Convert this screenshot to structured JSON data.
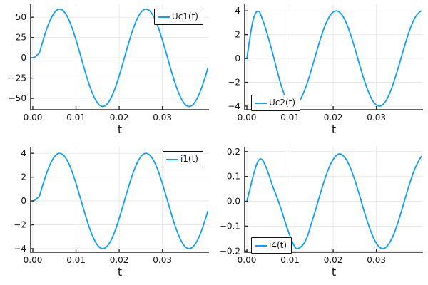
{
  "figure": {
    "background": "#ffffff",
    "colors": {
      "series_line": "#0f9ef8",
      "grid": "#e9e9e9",
      "axis": "#2b2b2b",
      "tick_text": "#141414",
      "legend_border": "#111111",
      "legend_bg": "#ffffff"
    }
  },
  "chart_data": [
    {
      "type": "line",
      "title": "",
      "xlabel": "t",
      "ylabel": "",
      "grid": true,
      "legend_position": "topright",
      "xlim": [
        -0.0005,
        0.0408
      ],
      "ylim": [
        -64,
        66
      ],
      "xticks": {
        "labels": [
          "0.00",
          "0.01",
          "0.02",
          "0.03"
        ],
        "values": [
          0,
          0.01,
          0.02,
          0.03
        ]
      },
      "yticks": {
        "labels": [
          "50",
          "25",
          "0",
          "−25",
          "−50"
        ],
        "values": [
          50,
          25,
          0,
          -25,
          -50
        ]
      },
      "series": [
        {
          "name": "Uc1(t)",
          "x": [
            0,
            0.0005,
            0.001,
            0.0015,
            0.002,
            0.003,
            0.004,
            0.005,
            0.006,
            0.007,
            0.008,
            0.009,
            0.01,
            0.011,
            0.012,
            0.013,
            0.014,
            0.015,
            0.016,
            0.017,
            0.018,
            0.019,
            0.02,
            0.021,
            0.022,
            0.023,
            0.024,
            0.025,
            0.026,
            0.027,
            0.028,
            0.029,
            0.03,
            0.031,
            0.032,
            0.033,
            0.034,
            0.035,
            0.036,
            0.037,
            0.038,
            0.039,
            0.04,
            0.0405
          ],
          "y": [
            0,
            1,
            3.5,
            6,
            14.9,
            32.1,
            46.2,
            55.8,
            59.9,
            58.1,
            50.7,
            38.2,
            22.1,
            3.8,
            -14.9,
            -32.1,
            -46.2,
            -55.8,
            -59.9,
            -58.1,
            -50.7,
            -38.2,
            -22.1,
            -3.8,
            14.9,
            32.1,
            46.2,
            55.8,
            59.9,
            58.1,
            50.7,
            38.2,
            22.1,
            3.8,
            -14.9,
            -32.1,
            -46.2,
            -55.8,
            -59.9,
            -58.1,
            -50.7,
            -38.2,
            -22.1,
            -13.1
          ]
        }
      ]
    },
    {
      "type": "line",
      "title": "",
      "xlabel": "t",
      "ylabel": "",
      "grid": true,
      "legend_position": "bottomleft",
      "xlim": [
        -0.0005,
        0.0408
      ],
      "ylim": [
        -4.3,
        4.55
      ],
      "xticks": {
        "labels": [
          "0.00",
          "0.01",
          "0.02",
          "0.03"
        ],
        "values": [
          0,
          0.01,
          0.02,
          0.03
        ]
      },
      "yticks": {
        "labels": [
          "4",
          "2",
          "0",
          "−2",
          "−4"
        ],
        "values": [
          4,
          2,
          0,
          -2,
          -4
        ]
      },
      "series": [
        {
          "name": "Uc2(t)",
          "x": [
            0,
            0.0005,
            0.001,
            0.0015,
            0.002,
            0.0025,
            0.003,
            0.004,
            0.005,
            0.006,
            0.007,
            0.008,
            0.009,
            0.01,
            0.0105,
            0.011,
            0.012,
            0.013,
            0.014,
            0.015,
            0.016,
            0.017,
            0.018,
            0.019,
            0.02,
            0.021,
            0.022,
            0.023,
            0.024,
            0.025,
            0.026,
            0.027,
            0.028,
            0.029,
            0.03,
            0.031,
            0.032,
            0.033,
            0.034,
            0.035,
            0.036,
            0.037,
            0.038,
            0.039,
            0.04,
            0.0405
          ],
          "y": [
            0,
            1.2,
            2.4,
            3.3,
            3.8,
            3.95,
            3.85,
            2.9,
            1.7,
            0.4,
            -1,
            -2.3,
            -3.3,
            -3.9,
            -3.95,
            -4,
            -3.7,
            -3,
            -2.05,
            -0.87,
            0.38,
            1.59,
            2.65,
            3.45,
            3.9,
            3.98,
            3.67,
            3.01,
            2.03,
            0.87,
            -0.38,
            -1.6,
            -2.65,
            -3.46,
            -3.9,
            -3.98,
            -3.67,
            -3,
            -2.02,
            -0.86,
            0.39,
            1.6,
            2.66,
            3.46,
            3.9,
            3.99
          ]
        }
      ]
    },
    {
      "type": "line",
      "title": "",
      "xlabel": "t",
      "ylabel": "",
      "grid": true,
      "legend_position": "topright",
      "xlim": [
        -0.0005,
        0.0408
      ],
      "ylim": [
        -4.3,
        4.55
      ],
      "xticks": {
        "labels": [
          "0.00",
          "0.01",
          "0.02",
          "0.03"
        ],
        "values": [
          0,
          0.01,
          0.02,
          0.03
        ]
      },
      "yticks": {
        "labels": [
          "4",
          "2",
          "0",
          "−2",
          "−4"
        ],
        "values": [
          4,
          2,
          0,
          -2,
          -4
        ]
      },
      "series": [
        {
          "name": "i1(t)",
          "x": [
            0,
            0.0005,
            0.001,
            0.0015,
            0.002,
            0.003,
            0.004,
            0.005,
            0.006,
            0.007,
            0.008,
            0.009,
            0.01,
            0.011,
            0.012,
            0.013,
            0.014,
            0.015,
            0.016,
            0.017,
            0.018,
            0.019,
            0.02,
            0.021,
            0.022,
            0.023,
            0.024,
            0.025,
            0.026,
            0.027,
            0.028,
            0.029,
            0.03,
            0.031,
            0.032,
            0.033,
            0.034,
            0.035,
            0.036,
            0.037,
            0.038,
            0.039,
            0.04,
            0.0405
          ],
          "y": [
            0,
            0.07,
            0.23,
            0.4,
            1,
            2.14,
            3.08,
            3.72,
            3.99,
            3.87,
            3.38,
            2.55,
            1.47,
            0.25,
            -0.99,
            -2.14,
            -3.08,
            -3.72,
            -3.99,
            -3.87,
            -3.38,
            -2.55,
            -1.47,
            -0.25,
            0.99,
            2.14,
            3.08,
            3.72,
            3.99,
            3.87,
            3.38,
            2.55,
            1.47,
            0.25,
            -0.99,
            -2.14,
            -3.08,
            -3.72,
            -3.99,
            -3.87,
            -3.38,
            -2.55,
            -1.47,
            -0.87
          ]
        }
      ]
    },
    {
      "type": "line",
      "title": "",
      "xlabel": "t",
      "ylabel": "",
      "grid": true,
      "legend_position": "bottomleft",
      "xlim": [
        -0.0005,
        0.0408
      ],
      "ylim": [
        -0.205,
        0.2195
      ],
      "xticks": {
        "labels": [
          "0.00",
          "0.01",
          "0.02",
          "0.03"
        ],
        "values": [
          0,
          0.01,
          0.02,
          0.03
        ]
      },
      "yticks": {
        "labels": [
          "0.2",
          "0.1",
          "0.0",
          "−0.1",
          "−0.2"
        ],
        "values": [
          0.2,
          0.1,
          0.0,
          -0.1,
          -0.2
        ]
      },
      "series": [
        {
          "name": "i4(t)",
          "x": [
            0,
            0.0005,
            0.001,
            0.0015,
            0.002,
            0.0025,
            0.003,
            0.0035,
            0.004,
            0.005,
            0.006,
            0.007,
            0.008,
            0.009,
            0.01,
            0.011,
            0.0115,
            0.012,
            0.013,
            0.014,
            0.015,
            0.016,
            0.017,
            0.018,
            0.019,
            0.02,
            0.021,
            0.0215,
            0.022,
            0.023,
            0.024,
            0.025,
            0.026,
            0.027,
            0.028,
            0.029,
            0.03,
            0.031,
            0.032,
            0.033,
            0.034,
            0.035,
            0.036,
            0.037,
            0.038,
            0.039,
            0.04,
            0.0405
          ],
          "y": [
            0,
            0.035,
            0.07,
            0.105,
            0.135,
            0.158,
            0.17,
            0.168,
            0.155,
            0.112,
            0.06,
            0.015,
            -0.035,
            -0.09,
            -0.14,
            -0.18,
            -0.19,
            -0.189,
            -0.175,
            -0.142,
            -0.086,
            -0.03,
            0.03,
            0.086,
            0.134,
            0.169,
            0.188,
            0.19,
            0.188,
            0.169,
            0.134,
            0.086,
            0.03,
            -0.03,
            -0.086,
            -0.134,
            -0.169,
            -0.188,
            -0.188,
            -0.168,
            -0.134,
            -0.085,
            -0.029,
            0.031,
            0.087,
            0.134,
            0.169,
            0.181
          ]
        }
      ]
    }
  ]
}
